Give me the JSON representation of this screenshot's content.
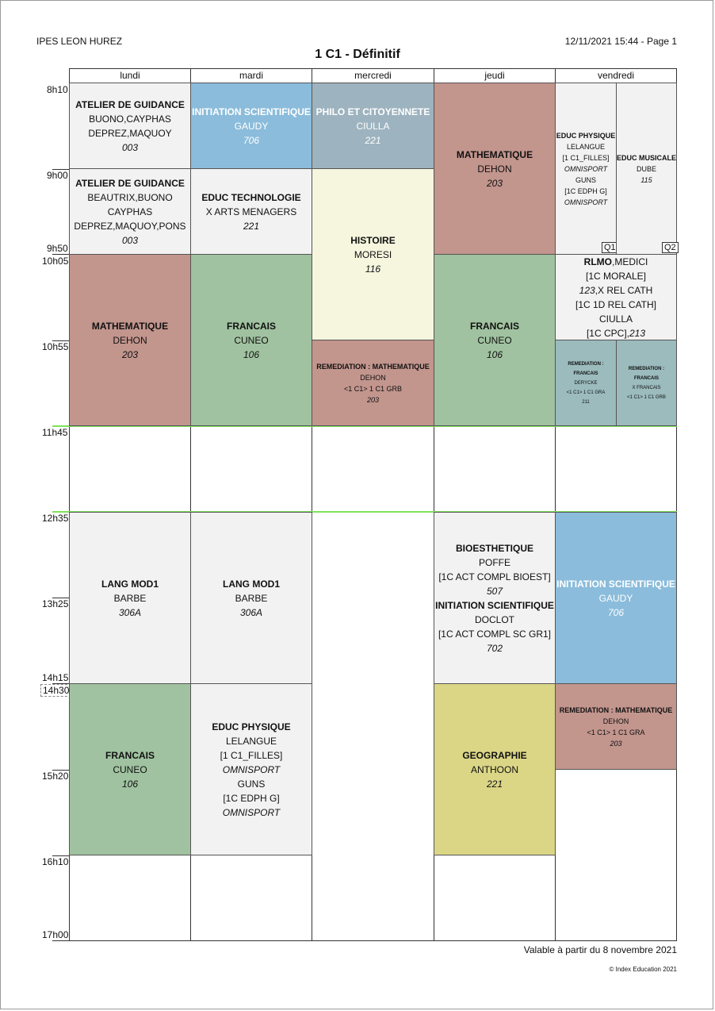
{
  "header": {
    "school": "IPES LEON HUREZ",
    "printed": "12/11/2021 15:44 - Page 1",
    "title": "1 C1 - Définitif"
  },
  "days": [
    "lundi",
    "mardi",
    "mercredi",
    "jeudi",
    "vendredi"
  ],
  "times": [
    "8h10",
    "9h00",
    "9h50",
    "10h05",
    "10h55",
    "11h45",
    "12h35",
    "13h25",
    "14h15",
    "14h30",
    "15h20",
    "16h10",
    "17h00"
  ],
  "colors": {
    "grey": "#f2f2f2",
    "blue": "#8bbcdb",
    "slate": "#9db3bf",
    "rose": "#c2958d",
    "cream": "#f6f6df",
    "green": "#a0c2a0",
    "olive": "#dbd686",
    "teal": "#9bbbbd",
    "lunch_line": "#7fe25a"
  },
  "events": {
    "lun_1": {
      "title": "ATELIER DE GUIDANCE",
      "l1": "BUONO,CAYPHAS",
      "l2": "DEPREZ,MAQUOY",
      "room": "003"
    },
    "lun_2": {
      "title": "ATELIER DE GUIDANCE",
      "l1": "BEAUTRIX,BUONO",
      "l2": "CAYPHAS",
      "l3": "DEPREZ,MAQUOY,PONS",
      "room": "003"
    },
    "lun_3": {
      "title": "MATHEMATIQUE",
      "l1": "DEHON",
      "room": "203"
    },
    "lun_4": {
      "title": "LANG MOD1",
      "l1": "BARBE",
      "room": "306A"
    },
    "lun_5": {
      "title": "FRANCAIS",
      "l1": "CUNEO",
      "room": "106"
    },
    "mar_1": {
      "title": "INITIATION SCIENTIFIQUE",
      "l1": "GAUDY",
      "room": "706"
    },
    "mar_2": {
      "title": "EDUC TECHNOLOGIE",
      "l1": "X ARTS MENAGERS",
      "room": "221"
    },
    "mar_3": {
      "title": "FRANCAIS",
      "l1": "CUNEO",
      "room": "106"
    },
    "mar_4": {
      "title": "LANG MOD1",
      "l1": "BARBE",
      "room": "306A"
    },
    "mar_5": {
      "title": "EDUC PHYSIQUE",
      "l1": "LELANGUE",
      "l2": "[1 C1_FILLES]",
      "i1": "OMNISPORT",
      "l3": "GUNS",
      "l4": "[1C EDPH G]",
      "i2": "OMNISPORT"
    },
    "mer_1": {
      "title": "PHILO ET CITOYENNETE",
      "l1": "CIULLA",
      "room": "221"
    },
    "mer_2": {
      "title": "HISTOIRE",
      "l1": "MORESI",
      "room": "116"
    },
    "mer_3": {
      "title": "REMEDIATION : MATHEMATIQUE",
      "l1": "DEHON",
      "l2": "<1 C1> 1 C1 GRB",
      "room": "203"
    },
    "jeu_1": {
      "title": "MATHEMATIQUE",
      "l1": "DEHON",
      "room": "203"
    },
    "jeu_2": {
      "title": "FRANCAIS",
      "l1": "CUNEO",
      "room": "106"
    },
    "jeu_3": {
      "title": "BIOESTHETIQUE",
      "l1": "POFFE",
      "l2": "[1C ACT COMPL BIOEST]",
      "room": "507",
      "title2": "INITIATION SCIENTIFIQUE",
      "l3": "DOCLOT",
      "l4": "[1C ACT COMPL SC GR1]",
      "room2": "702"
    },
    "jeu_4": {
      "title": "GEOGRAPHIE",
      "l1": "ANTHOON",
      "room": "221"
    },
    "ven_1a": {
      "title": "EDUC PHYSIQUE",
      "l1": "LELANGUE",
      "l2": "[1 C1_FILLES]",
      "i1": "OMNISPORT",
      "l3": "GUNS",
      "l4": "[1C EDPH G]",
      "i2": "OMNISPORT",
      "q": "Q1"
    },
    "ven_1b": {
      "title": "EDUC MUSICALE",
      "l1": "DUBE",
      "room": "115",
      "q": "Q2"
    },
    "ven_2": {
      "title": "RLMO",
      "l1a": ",MEDICI",
      "l2": "[1C MORALE]",
      "l3i": "123",
      "l3": ",X REL CATH",
      "l4": "[1C 1D REL CATH]",
      "l5": "CIULLA",
      "l6": "[1C CPC],",
      "l6i": "213"
    },
    "ven_3a": {
      "title": "REMEDIATION : FRANCAIS",
      "l1": "DERYCKE",
      "l2": "<1 C1> 1 C1 GRA",
      "room": "211"
    },
    "ven_3b": {
      "title": "REMEDIATION : FRANCAIS",
      "l1": "X FRANCAIS",
      "l2": "<1 C1> 1 C1 GRB"
    },
    "ven_4": {
      "title": "INITIATION SCIENTIFIQUE",
      "l1": "GAUDY",
      "room": "706"
    },
    "ven_5": {
      "title": "REMEDIATION : MATHEMATIQUE",
      "l1": "DEHON",
      "l2": "<1 C1> 1 C1 GRA",
      "room": "203"
    }
  },
  "footer": {
    "valid": "Valable à partir du 8 novembre 2021",
    "copyright": "© Index Education 2021"
  }
}
